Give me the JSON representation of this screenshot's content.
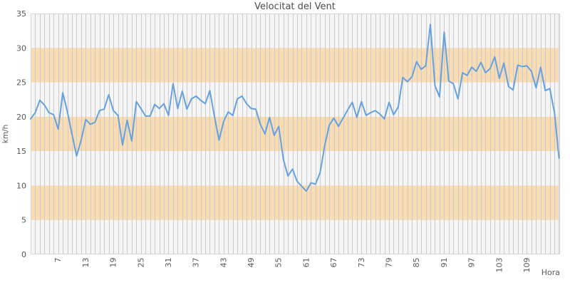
{
  "chart_data": {
    "type": "line",
    "title": "Velocitat del Vent",
    "xlabel": "Hora",
    "ylabel": "km/h",
    "x_start": 1,
    "values": [
      19.7,
      20.6,
      22.4,
      21.7,
      20.6,
      20.3,
      18.2,
      23.5,
      20.7,
      17.5,
      14.3,
      16.6,
      19.6,
      18.9,
      19.2,
      20.9,
      21.1,
      23.2,
      20.9,
      20.2,
      15.9,
      19.5,
      16.5,
      22.2,
      21.2,
      20.1,
      20.1,
      21.8,
      21.2,
      21.9,
      20.2,
      24.8,
      21.2,
      23.7,
      21.1,
      22.6,
      23.0,
      22.4,
      21.9,
      23.8,
      20.1,
      16.6,
      19.3,
      20.7,
      20.2,
      22.6,
      23.0,
      21.9,
      21.2,
      21.1,
      18.9,
      17.5,
      19.9,
      17.3,
      18.6,
      13.8,
      11.4,
      12.4,
      10.6,
      9.9,
      9.2,
      10.4,
      10.2,
      11.9,
      15.8,
      18.8,
      19.8,
      18.6,
      19.8,
      21.0,
      22.1,
      19.9,
      22.2,
      20.2,
      20.6,
      20.9,
      20.4,
      19.7,
      22.1,
      20.3,
      21.4,
      25.7,
      25.1,
      25.8,
      28.0,
      26.9,
      27.4,
      33.4,
      24.5,
      22.9,
      32.3,
      25.2,
      24.8,
      22.6,
      26.4,
      26.0,
      27.2,
      26.6,
      27.9,
      26.4,
      27.0,
      28.7,
      25.6,
      27.8,
      24.4,
      23.9,
      27.5,
      27.3,
      27.4,
      26.6,
      24.2,
      27.2,
      23.8,
      24.1,
      20.6,
      14.0
    ],
    "xticks": [
      7,
      13,
      19,
      25,
      31,
      37,
      43,
      49,
      55,
      61,
      67,
      73,
      79,
      85,
      91,
      97,
      103,
      109
    ],
    "yticks": [
      0,
      5,
      10,
      15,
      20,
      25,
      30,
      35
    ],
    "ylim": [
      0,
      35
    ],
    "bands": [
      [
        5,
        10
      ],
      [
        15,
        20
      ],
      [
        25,
        30
      ]
    ],
    "grid": "vertical-per-hour",
    "legend": "none",
    "colors": {
      "line": "#64a1e0",
      "band": "#fadcb2",
      "plot_bg": "#f5f5f6",
      "grid": "#c9c9ce",
      "frame": "#d4d4d8",
      "tick_text": "#58595b",
      "title_text": "#4c4c4e"
    }
  }
}
